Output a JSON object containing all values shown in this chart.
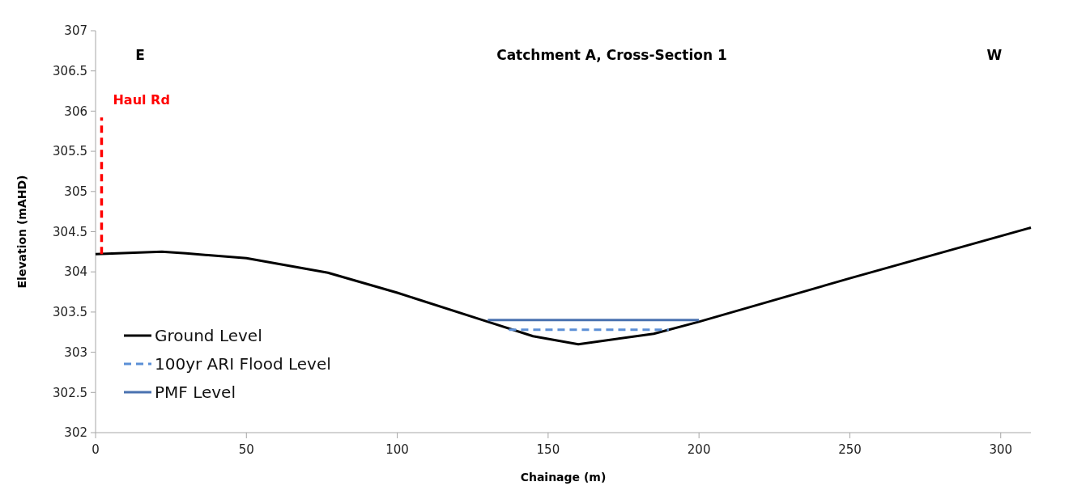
{
  "chart_data": {
    "type": "line",
    "title": "Catchment A, Cross-Section 1",
    "xlabel": "Chainage (m)",
    "ylabel": "Elevation (mAHD)",
    "xlim": [
      0,
      310
    ],
    "xticks": [
      0,
      50,
      100,
      150,
      200,
      250,
      300
    ],
    "ylim": [
      302,
      307
    ],
    "yticks": [
      302,
      302.5,
      303,
      303.5,
      304,
      304.5,
      305,
      305.5,
      306,
      306.5,
      307
    ],
    "grid": false,
    "legend": "bottom left",
    "series": [
      {
        "name": "Ground Level",
        "color": "#000000",
        "line_style": "solid",
        "x": [
          0,
          22,
          30,
          50,
          77,
          100,
          130,
          145,
          160,
          185,
          200,
          250,
          310
        ],
        "values": [
          304.22,
          304.25,
          304.23,
          304.17,
          303.99,
          303.74,
          303.38,
          303.2,
          303.1,
          303.23,
          303.38,
          303.92,
          304.55
        ]
      },
      {
        "name": "100yr ARI Flood Level",
        "color": "#5b8fd6",
        "line_style": "dashed",
        "x": [
          137,
          190
        ],
        "values": [
          303.28,
          303.28
        ]
      },
      {
        "name": "PMF Level",
        "color": "#4a72b0",
        "line_style": "solid",
        "x": [
          130,
          200
        ],
        "values": [
          303.4,
          303.4
        ]
      },
      {
        "color": "#ff0000",
        "line_style": "dashed",
        "x": [
          2,
          2
        ],
        "values": [
          304.22,
          305.92
        ]
      }
    ],
    "annotations": [
      {
        "text": "Haul Rd",
        "x": 2,
        "y": 305.92
      },
      "E",
      "W"
    ]
  }
}
